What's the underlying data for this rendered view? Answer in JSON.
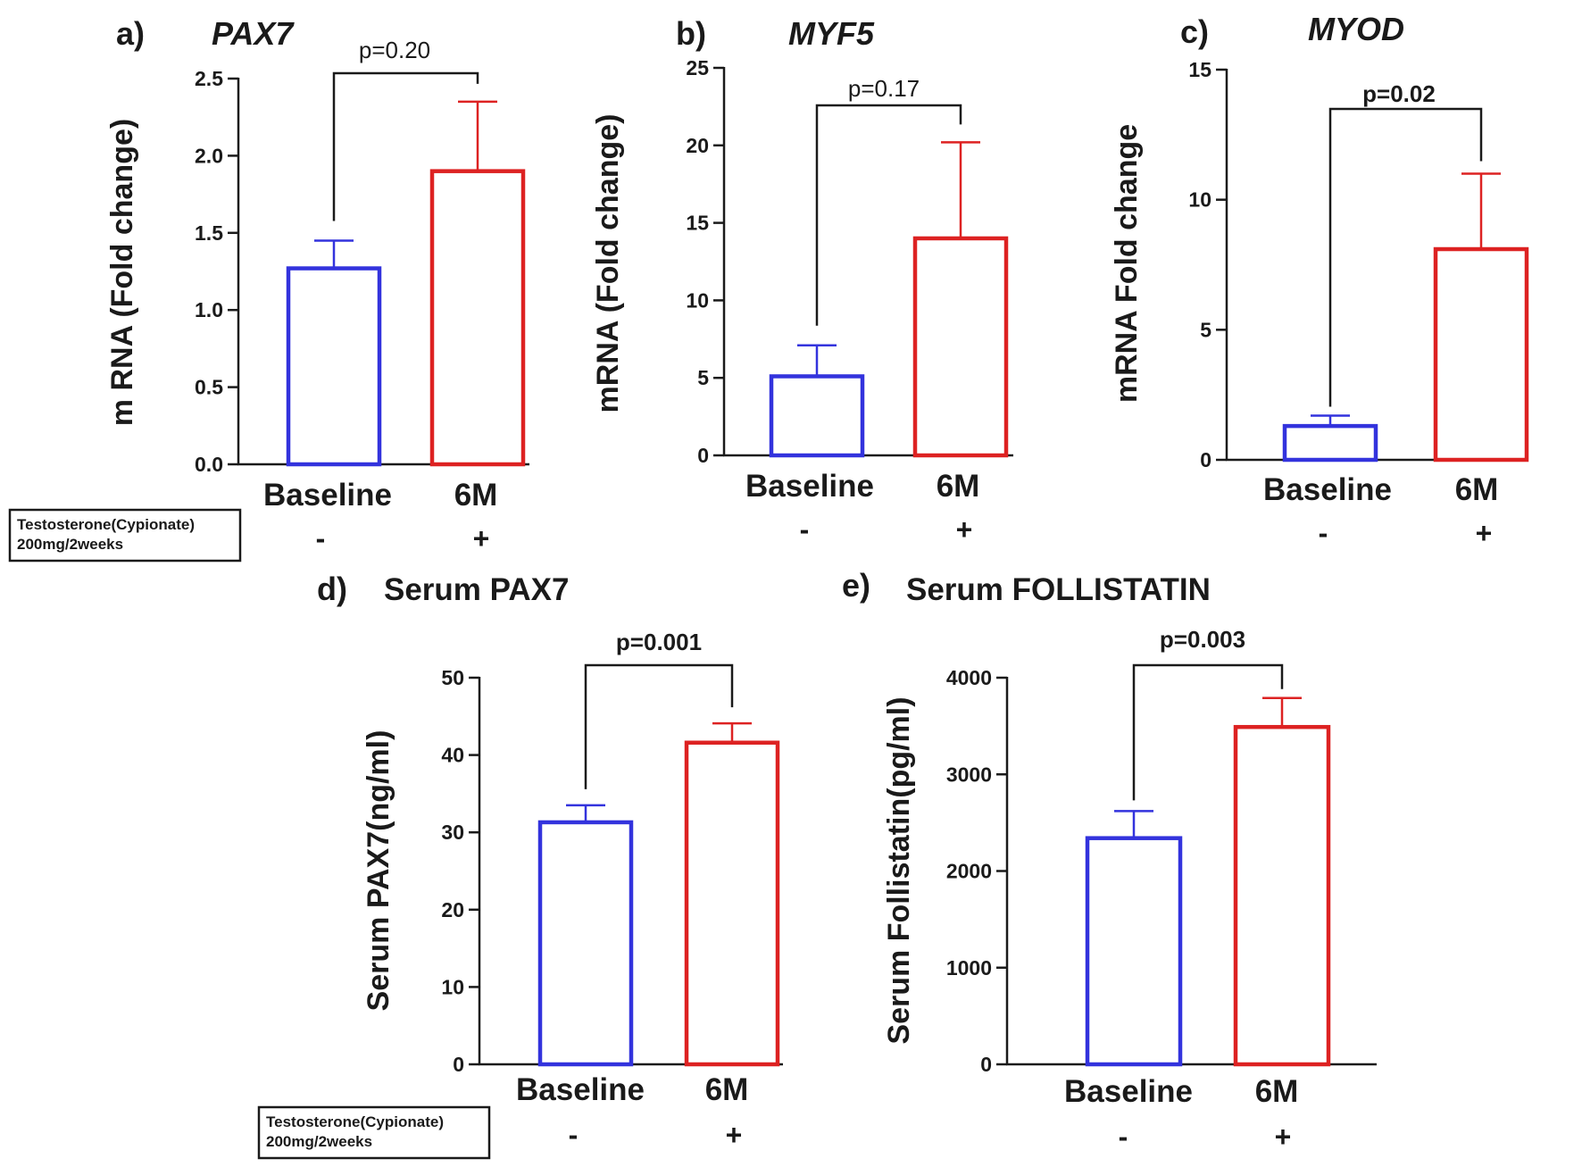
{
  "treatment_label": {
    "line1": "Testosterone(Cypionate)",
    "line2": "200mg/2weeks"
  },
  "colors": {
    "baseline": "#3333dd",
    "treated": "#dd2222",
    "axis": "#1a1a1a"
  },
  "chart_data": [
    {
      "id": "a",
      "type": "bar",
      "panel_label": "a)",
      "title": "PAX7",
      "title_style": "italic",
      "ylabel": "m RNA (Fold change)",
      "ylim": [
        0,
        2.5
      ],
      "yticks": [
        0.0,
        0.5,
        1.0,
        1.5,
        2.0,
        2.5
      ],
      "ytick_labels": [
        "0.0",
        "0.5",
        "1.0",
        "1.5",
        "2.0",
        "2.5"
      ],
      "categories": [
        "Baseline",
        "6M"
      ],
      "signs": [
        "-",
        "+"
      ],
      "values": [
        1.27,
        1.9
      ],
      "errors": [
        0.18,
        0.45
      ],
      "pvalue": "p=0.20",
      "pvalue_bold": false
    },
    {
      "id": "b",
      "type": "bar",
      "panel_label": "b)",
      "title": "MYF5",
      "title_style": "italic",
      "ylabel": "mRNA (Fold change)",
      "ylim": [
        0,
        25
      ],
      "yticks": [
        0,
        5,
        10,
        15,
        20,
        25
      ],
      "ytick_labels": [
        "0",
        "5",
        "10",
        "15",
        "20",
        "25"
      ],
      "categories": [
        "Baseline",
        "6M"
      ],
      "signs": [
        "-",
        "+"
      ],
      "values": [
        5.1,
        14.0
      ],
      "errors": [
        2.0,
        6.2
      ],
      "pvalue": "p=0.17",
      "pvalue_bold": false
    },
    {
      "id": "c",
      "type": "bar",
      "panel_label": "c)",
      "title": "MYOD",
      "title_style": "italic",
      "ylabel": "mRNA Fold change",
      "ylim": [
        0,
        15
      ],
      "yticks": [
        0,
        5,
        10,
        15
      ],
      "ytick_labels": [
        "0",
        "5",
        "10",
        "15"
      ],
      "categories": [
        "Baseline",
        "6M"
      ],
      "signs": [
        "-",
        "+"
      ],
      "values": [
        1.3,
        8.1
      ],
      "errors": [
        0.4,
        2.9
      ],
      "pvalue": "p=0.02",
      "pvalue_bold": true
    },
    {
      "id": "d",
      "type": "bar",
      "panel_label": "d)",
      "title": "Serum PAX7",
      "title_style": "normal",
      "ylabel": "Serum PAX7(ng/ml)",
      "ylim": [
        0,
        50
      ],
      "yticks": [
        0,
        10,
        20,
        30,
        40,
        50
      ],
      "ytick_labels": [
        "0",
        "10",
        "20",
        "30",
        "40",
        "50"
      ],
      "categories": [
        "Baseline",
        "6M"
      ],
      "signs": [
        "-",
        "+"
      ],
      "values": [
        31.3,
        41.6
      ],
      "errors": [
        2.2,
        2.5
      ],
      "pvalue": "p=0.001",
      "pvalue_bold": true
    },
    {
      "id": "e",
      "type": "bar",
      "panel_label": "e)",
      "title": "Serum FOLLISTATIN",
      "title_style": "normal",
      "ylabel": "Serum Follistatin(pg/ml)",
      "ylim": [
        0,
        4000
      ],
      "yticks": [
        0,
        1000,
        2000,
        3000,
        4000
      ],
      "ytick_labels": [
        "0",
        "1000",
        "2000",
        "3000",
        "4000"
      ],
      "categories": [
        "Baseline",
        "6M"
      ],
      "signs": [
        "-",
        "+"
      ],
      "values": [
        2340,
        3490
      ],
      "errors": [
        280,
        300
      ],
      "pvalue": "p=0.003",
      "pvalue_bold": true
    }
  ]
}
